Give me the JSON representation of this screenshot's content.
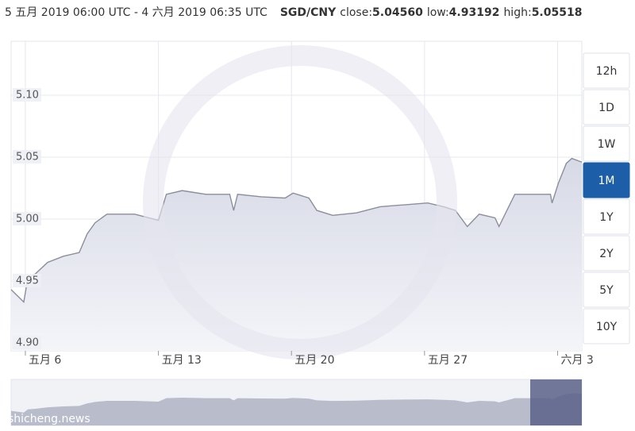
{
  "header": {
    "title": "5 五月 2019 06:00 UTC - 4 六月 2019 06:35 UTC",
    "pair": "SGD/CNY",
    "stats": [
      {
        "label": "close:",
        "value": "5.04560"
      },
      {
        "label": "low:",
        "value": "4.93192"
      },
      {
        "label": "high:",
        "value": "5.05518"
      }
    ],
    "watermark": "shicheng.news"
  },
  "controls": {
    "ranges": [
      "12h",
      "1D",
      "1W",
      "1M",
      "1Y",
      "2Y",
      "5Y",
      "10Y"
    ],
    "active": "1M"
  },
  "chart_data": {
    "type": "area",
    "color": "#8a8f9c",
    "grid": true,
    "x": [
      "2019-05-05 06:00",
      "2019-05-05 22:00",
      "2019-05-06 03:00",
      "2019-05-06 13:00",
      "2019-05-07 04:00",
      "2019-05-08 00:00",
      "2019-05-08 20:00",
      "2019-05-09 06:00",
      "2019-05-09 16:00",
      "2019-05-10 07:00",
      "2019-05-11 18:00",
      "2019-05-13 00:00",
      "2019-05-13 10:00",
      "2019-05-14 06:00",
      "2019-05-15 12:00",
      "2019-05-16 18:00",
      "2019-05-16 23:00",
      "2019-05-17 04:00",
      "2019-05-18 10:00",
      "2019-05-19 16:00",
      "2019-05-20 02:00",
      "2019-05-20 22:00",
      "2019-05-21 08:00",
      "2019-05-22 04:00",
      "2019-05-23 10:00",
      "2019-05-24 16:00",
      "2019-05-25 12:00",
      "2019-05-27 04:00",
      "2019-05-28 00:00",
      "2019-05-28 15:00",
      "2019-05-29 06:00",
      "2019-05-29 21:00",
      "2019-05-30 17:00",
      "2019-05-30 22:00",
      "2019-05-31 08:00",
      "2019-05-31 18:00",
      "2019-06-01 14:00",
      "2019-06-02 15:00",
      "2019-06-02 17:00",
      "2019-06-03 01:00",
      "2019-06-03 11:00",
      "2019-06-03 18:00",
      "2019-06-04 06:35"
    ],
    "values": [
      4.943,
      4.933,
      4.952,
      4.956,
      4.965,
      4.97,
      4.973,
      4.988,
      4.997,
      5.004,
      5.004,
      4.999,
      5.02,
      5.023,
      5.02,
      5.02,
      5.007,
      5.02,
      5.018,
      5.017,
      5.021,
      5.017,
      5.007,
      5.003,
      5.005,
      5.01,
      5.011,
      5.013,
      5.01,
      5.007,
      4.994,
      5.004,
      5.001,
      4.994,
      5.007,
      5.02,
      5.02,
      5.02,
      5.013,
      5.029,
      5.045,
      5.049,
      5.046
    ],
    "xlim": [
      "2019-05-05 06:00",
      "2019-06-04 06:35"
    ],
    "xticks": [
      {
        "value": "2019-05-06 00:00",
        "label": "五月 6"
      },
      {
        "value": "2019-05-13 00:00",
        "label": "五月 13"
      },
      {
        "value": "2019-05-20 00:00",
        "label": "五月 20"
      },
      {
        "value": "2019-05-27 00:00",
        "label": "五月 27"
      },
      {
        "value": "2019-06-03 00:00",
        "label": "六月 3"
      }
    ],
    "ylim": [
      4.8936,
      5.1436
    ],
    "yticks": [
      {
        "value": 4.9,
        "label": "4.90"
      },
      4.95,
      {
        "value": 5.0,
        "label": "5.00"
      },
      5.05,
      {
        "value": 5.1,
        "label": "5.10"
      }
    ]
  }
}
